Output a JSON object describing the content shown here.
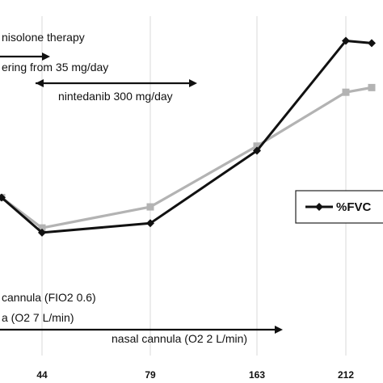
{
  "chart_data": {
    "type": "line",
    "x": [
      10,
      44,
      79,
      163,
      212,
      225
    ],
    "x_ticks": [
      "44",
      "79",
      "163",
      "212"
    ],
    "series": [
      {
        "name": "%FVC",
        "color": "#111111",
        "marker": "diamond",
        "values": [
          33,
          18,
          22,
          53,
          100,
          99
        ]
      },
      {
        "name": "",
        "color": "#b3b3b3",
        "marker": "square",
        "values": [
          33,
          20,
          29,
          55,
          78,
          80
        ]
      }
    ],
    "ylim": [
      0,
      105
    ],
    "grid": "vertical",
    "legend": "right",
    "annotations": [
      {
        "text": "nisolone therapy"
      },
      {
        "text": "ering from 35 mg/day"
      },
      {
        "text": "nintedanib 300 mg/day"
      },
      {
        "text": "cannula (FIO2 0.6)"
      },
      {
        "text": "a (O2 7 L/min)"
      },
      {
        "text": "nasal cannula (O2 2 L/min)"
      }
    ]
  }
}
